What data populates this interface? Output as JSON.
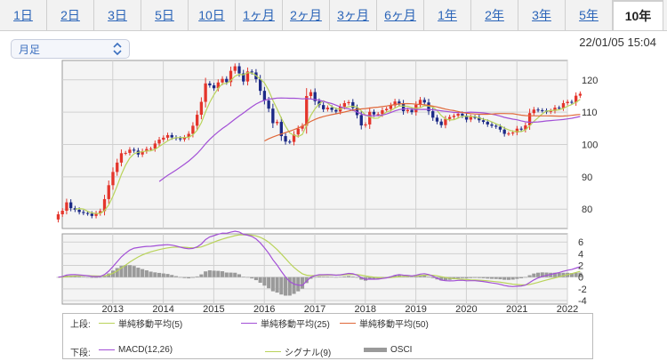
{
  "tabs": [
    "1日",
    "2日",
    "3日",
    "5日",
    "10日",
    "1ヶ月",
    "2ヶ月",
    "3ヶ月",
    "6ヶ月",
    "1年",
    "2年",
    "3年",
    "5年",
    "10年"
  ],
  "active_tab": "10年",
  "interval_select": {
    "value": "月足",
    "icon": "up-down-chevron-icon"
  },
  "timestamp": "22/01/05 15:04",
  "colors": {
    "up": "#e4352c",
    "down": "#1c2a87",
    "sma5": "#b9d35a",
    "sma25": "#a24fd6",
    "sma50": "#e0683a",
    "macd": "#a24fd6",
    "signal": "#b9d35a",
    "osci": "#9a9a9a",
    "link": "#2a64b8"
  },
  "legend": {
    "upper_prefix": "上段:",
    "lower_prefix": "下段:",
    "upper_items": [
      {
        "label": "単純移動平均(5)",
        "color": "#b9d35a"
      },
      {
        "label": "単純移動平均(25)",
        "color": "#a24fd6"
      },
      {
        "label": "単純移動平均(50)",
        "color": "#e0683a"
      }
    ],
    "lower_items": [
      {
        "label": "MACD(12,26)",
        "color": "#a24fd6",
        "kind": "line"
      },
      {
        "label": "シグナル(9)",
        "color": "#b9d35a",
        "kind": "line"
      },
      {
        "label": "OSCI",
        "color": "#9a9a9a",
        "kind": "bar"
      }
    ]
  },
  "chart_data": [
    {
      "type": "candlestick",
      "title": "",
      "x_ticks": [
        "2013",
        "2014",
        "2015",
        "2016",
        "2017",
        "2018",
        "2019",
        "2020",
        "2021",
        "2022"
      ],
      "x_range": [
        2012.0,
        2022.0
      ],
      "y_ticks": [
        80,
        90,
        100,
        110,
        120
      ],
      "ylim": [
        74,
        126
      ],
      "grid": true,
      "closes": [
        78.4,
        79.5,
        82.1,
        80.3,
        79.8,
        79.1,
        78.8,
        78.6,
        77.9,
        78.7,
        79.4,
        83.1,
        87.4,
        91.5,
        94.4,
        97.3,
        97.4,
        98.4,
        98.1,
        96.9,
        97.9,
        98.6,
        98.7,
        100.3,
        101.5,
        102.1,
        102.9,
        102.2,
        101.9,
        101.6,
        102.2,
        103.3,
        105.8,
        109.2,
        113.2,
        118.9,
        118.3,
        117.4,
        119.2,
        120.3,
        119.3,
        122.8,
        124.2,
        122.0,
        119.5,
        122.6,
        122.3,
        120.2,
        116.6,
        113.6,
        111.1,
        106.6,
        107.0,
        102.6,
        100.9,
        100.8,
        103.1,
        104.9,
        105.8,
        115.0,
        116.2,
        113.4,
        112.2,
        110.9,
        111.4,
        110.7,
        110.2,
        111.7,
        112.8,
        113.1,
        111.3,
        109.1,
        105.9,
        106.2,
        110.1,
        109.3,
        109.4,
        110.6,
        111.0,
        112.1,
        113.3,
        112.7,
        110.3,
        110.7,
        110.0,
        112.3,
        113.8,
        113.0,
        110.3,
        108.3,
        107.1,
        106.0,
        107.9,
        108.5,
        108.9,
        109.5,
        108.9,
        107.7,
        108.5,
        108.4,
        107.5,
        107.0,
        106.2,
        105.8,
        105.5,
        104.6,
        103.3,
        103.4,
        103.7,
        104.9,
        104.6,
        105.9,
        109.7,
        110.8,
        110.6,
        110.5,
        110.1,
        110.4,
        111.4,
        111.3,
        112.8,
        113.2,
        113.0,
        115.1,
        115.7
      ],
      "upper_series": [
        {
          "name": "単純移動平均(5)",
          "color": "#b9d35a"
        },
        {
          "name": "単純移動平均(25)",
          "color": "#a24fd6"
        },
        {
          "name": "単純移動平均(50)",
          "color": "#e0683a"
        }
      ],
      "lower": {
        "type": "line+bar",
        "y_ticks": [
          -4,
          -2,
          0,
          2,
          4,
          6
        ],
        "ylim": [
          -4.6,
          7.4
        ],
        "series": [
          {
            "name": "MACD(12,26)",
            "color": "#a24fd6"
          },
          {
            "name": "シグナル(9)",
            "color": "#b9d35a"
          },
          {
            "name": "OSCI",
            "color": "#9a9a9a",
            "kind": "bar"
          }
        ]
      }
    }
  ]
}
